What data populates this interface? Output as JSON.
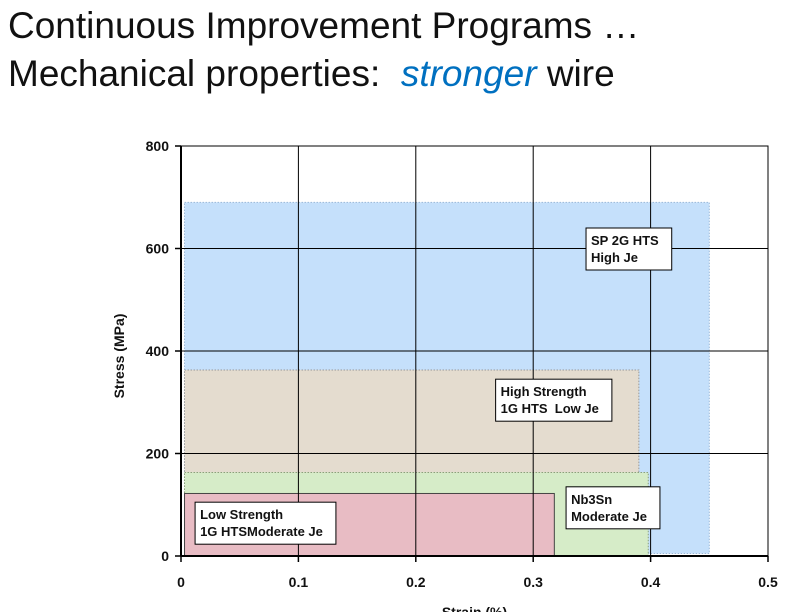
{
  "slide": {
    "title_line1": "Continuous Improvement Programs …",
    "title_line2_prefix": "Mechanical properties:  ",
    "title_line2_accent": "stronger",
    "title_line2_suffix": " wire",
    "accent_color": "#0070c0"
  },
  "chart_data": {
    "type": "region",
    "title": "",
    "xlabel": "Strain (%)",
    "ylabel": "Stress (MPa)",
    "xlim": [
      0,
      0.5
    ],
    "ylim": [
      0,
      800
    ],
    "x_ticks": [
      0,
      0.1,
      0.2,
      0.3,
      0.4,
      0.5
    ],
    "x_tick_labels": [
      "0",
      "0.1",
      "0.2",
      "0.3",
      "0.4",
      "0.5"
    ],
    "y_ticks": [
      0,
      200,
      400,
      600,
      800
    ],
    "y_tick_labels": [
      "0",
      "200",
      "400",
      "600",
      "800"
    ],
    "grid": true,
    "regions": [
      {
        "name": "SP 2G HTS",
        "x_range": [
          0.003,
          0.45
        ],
        "y_range": [
          5,
          690
        ],
        "fill": "#c5e0fb",
        "stroke": "#9ab8d8",
        "label_lines": [
          "SP 2G HTS",
          "High Je"
        ],
        "label_x": 0.345,
        "label_y": 640
      },
      {
        "name": "High Strength 1G HTS",
        "x_range": [
          0.003,
          0.39
        ],
        "y_range": [
          0,
          363
        ],
        "fill": "#e4dccf",
        "stroke": "#999999",
        "label_lines": [
          "High Strength",
          "1G HTS  Low Je"
        ],
        "label_x": 0.268,
        "label_y": 345
      },
      {
        "name": "Nb3Sn",
        "x_range": [
          0.003,
          0.398
        ],
        "y_range": [
          0,
          163
        ],
        "fill": "#d6ecc8",
        "stroke": "#8aa07a",
        "label_lines": [
          "Nb3Sn",
          "Moderate Je"
        ],
        "label_x": 0.328,
        "label_y": 135
      },
      {
        "name": "Low Strength 1G HTS",
        "x_range": [
          0.003,
          0.318
        ],
        "y_range": [
          0,
          122
        ],
        "fill": "#e8bcc4",
        "stroke": "#444444",
        "label_lines": [
          "Low Strength",
          "1G HTSModerate Je"
        ],
        "label_x": 0.012,
        "label_y": 105
      }
    ]
  }
}
